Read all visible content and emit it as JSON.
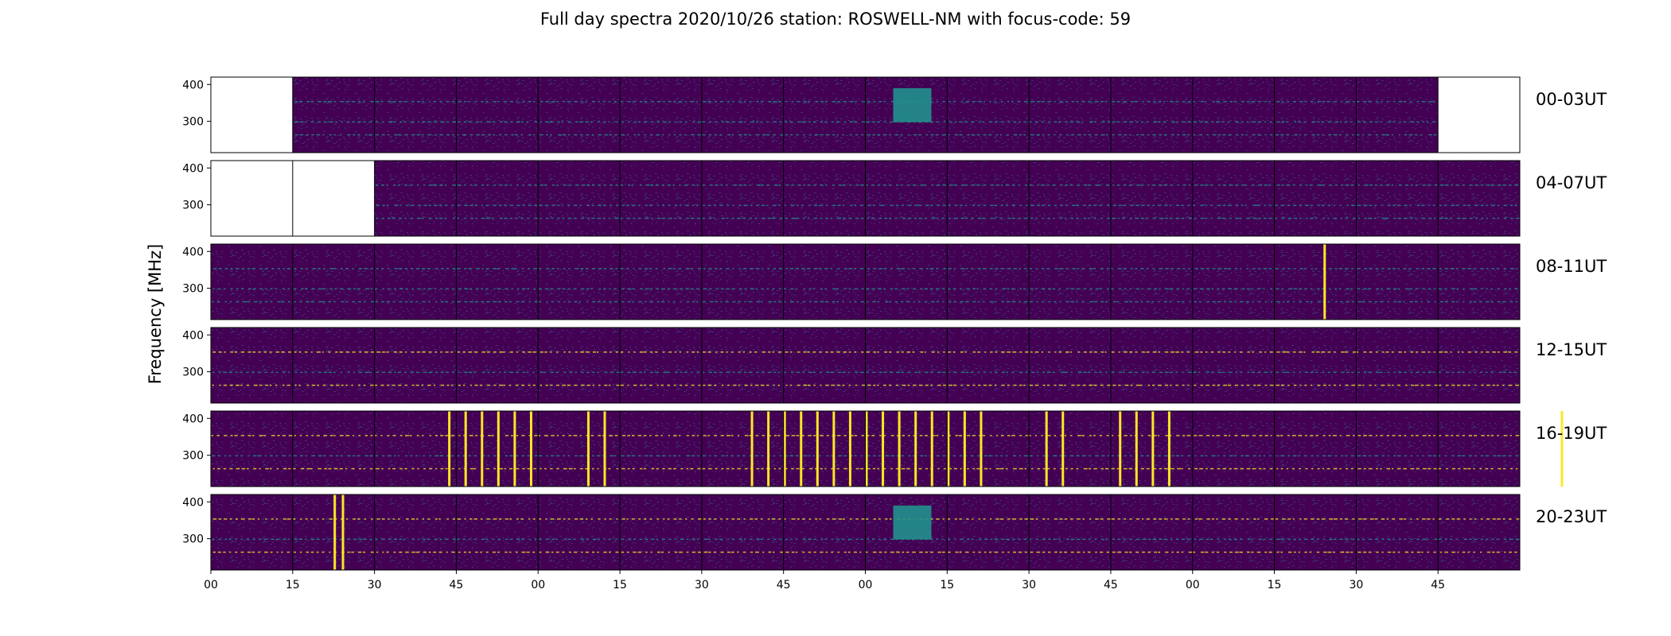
{
  "title": "Full day spectra 2020/10/26 station: ROSWELL-NM with focus-code: 59",
  "chart_data": {
    "type": "heatmap",
    "title": "Full day spectra 2020/10/26 station: ROSWELL-NM with focus-code: 59",
    "ylabel": "Frequency [MHz]",
    "ylim": [
      215,
      420
    ],
    "yticks": [
      300,
      400
    ],
    "xtick_labels": [
      "00",
      "15",
      "30",
      "45",
      "00",
      "15",
      "30",
      "45",
      "00",
      "15",
      "30",
      "45",
      "00",
      "15",
      "30",
      "45"
    ],
    "colormap": [
      "#440154",
      "#3b528b",
      "#21918c",
      "#5ec962",
      "#fde725"
    ],
    "rows": [
      {
        "label": "00-03UT",
        "missing_panels": [
          0,
          15
        ],
        "bursts": [],
        "bright_panels": [
          8
        ]
      },
      {
        "label": "04-07UT",
        "missing_panels": [
          0,
          1
        ],
        "bursts": [],
        "bright_panels": []
      },
      {
        "label": "08-11UT",
        "missing_panels": [],
        "bursts": [
          13.6
        ],
        "bright_panels": []
      },
      {
        "label": "12-15UT",
        "missing_panels": [],
        "bursts": [],
        "bright_panels": []
      },
      {
        "label": "16-19UT",
        "missing_panels": [],
        "bursts": [
          2.9,
          3.1,
          3.3,
          3.5,
          3.7,
          3.9,
          4.6,
          4.8,
          6.6,
          6.8,
          7.0,
          7.2,
          7.4,
          7.6,
          7.8,
          8.0,
          8.2,
          8.4,
          8.6,
          8.8,
          9.0,
          9.2,
          9.4,
          10.2,
          10.4,
          11.1,
          11.3,
          11.5,
          11.7,
          16.5
        ],
        "bright_panels": []
      },
      {
        "label": "20-23UT",
        "missing_panels": [],
        "bursts": [
          1.5,
          1.6
        ],
        "bright_panels": [
          8
        ]
      }
    ]
  }
}
